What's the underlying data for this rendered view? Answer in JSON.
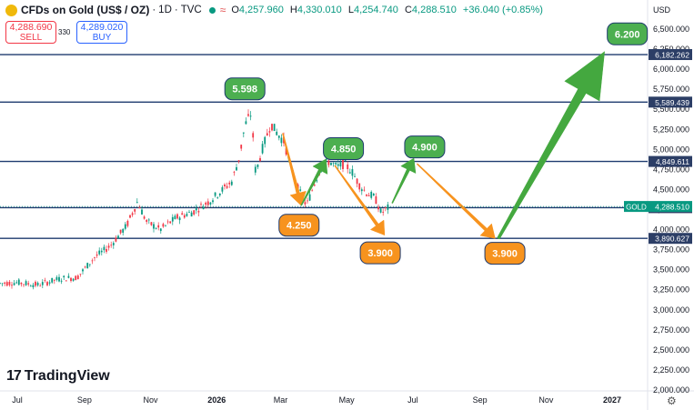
{
  "header": {
    "symbol": "CFDs on Gold (US$ / OZ)",
    "interval": "1D",
    "source": "TVC",
    "wave_icon": "≈",
    "ohlc": {
      "o_label": "O",
      "o": "4,257.960",
      "h_label": "H",
      "h": "4,330.010",
      "l_label": "L",
      "l": "4,254.740",
      "c_label": "C",
      "c": "4,288.510",
      "change": "+36.040 (+0.85%)"
    }
  },
  "trade": {
    "sell_price": "4,288.690",
    "sell_label": "SELL",
    "spread": "330",
    "buy_price": "4,289.020",
    "buy_label": "BUY"
  },
  "currency": "USD",
  "brand": "TradingView",
  "colors": {
    "up": "#089981",
    "down": "#f23645",
    "level_line": "#1e3a6e",
    "arrow_green": "#44a83f",
    "arrow_orange": "#f7931e",
    "label_green": "#4caf50",
    "label_orange": "#f7931e"
  },
  "chart_data": {
    "type": "line",
    "x_ticks": [
      "Jul",
      "Sep",
      "Nov",
      "2026",
      "Mar",
      "May",
      "Jul",
      "Sep",
      "Nov",
      "2027"
    ],
    "y_ticks": [
      "6,500.000",
      "6,250.000",
      "6,000.000",
      "5,750.000",
      "5,500.000",
      "5,250.000",
      "5,000.000",
      "4,750.000",
      "4,500.000",
      "4,250.000",
      "4,000.000",
      "3,750.000",
      "3,500.000",
      "3,250.000",
      "3,000.000",
      "2,750.000",
      "2,500.000",
      "2,250.000",
      "2,000.000"
    ],
    "y_tick_values": [
      6500,
      6250,
      6000,
      5750,
      5500,
      5250,
      5000,
      4750,
      4500,
      4250,
      4000,
      3750,
      3500,
      3250,
      3000,
      2750,
      2500,
      2250,
      2000
    ],
    "ylim": [
      2000,
      6500
    ],
    "price_series": {
      "dates": [
        "2025-06-15",
        "2025-07-01",
        "2025-07-20",
        "2025-08-10",
        "2025-08-25",
        "2025-09-10",
        "2025-09-25",
        "2025-10-10",
        "2025-10-20",
        "2025-10-28",
        "2025-11-10",
        "2025-11-25",
        "2025-12-10",
        "2025-12-25",
        "2026-01-05",
        "2026-01-15",
        "2026-01-22",
        "2026-01-27",
        "2026-02-02",
        "2026-02-06",
        "2026-02-12",
        "2026-02-20",
        "2026-02-26",
        "2026-03-04",
        "2026-03-12",
        "2026-03-18",
        "2026-03-25",
        "2026-04-02",
        "2026-04-08",
        "2026-04-15",
        "2026-04-22",
        "2026-04-29",
        "2026-05-06",
        "2026-05-13",
        "2026-05-20",
        "2026-05-27",
        "2026-06-02",
        "2026-06-06",
        "2026-06-10"
      ],
      "values": [
        3330,
        3340,
        3310,
        3390,
        3400,
        3650,
        3800,
        4050,
        4350,
        4100,
        4000,
        4150,
        4220,
        4350,
        4480,
        4600,
        4900,
        5300,
        5450,
        4700,
        5000,
        5320,
        5200,
        5100,
        4700,
        4480,
        4300,
        4600,
        4800,
        4850,
        4780,
        4820,
        4720,
        4550,
        4450,
        4400,
        4200,
        4250,
        4288.51
      ]
    },
    "levels": [
      6182.262,
      5589.439,
      4849.611,
      4273.634,
      3890.627
    ],
    "level_labels": [
      "6,182.262",
      "5,589.439",
      "4,849.611",
      "4,273.634",
      "3,890.627"
    ],
    "current_price": {
      "symbol": "GOLD",
      "value": "4,288.510",
      "y": 4288.51
    },
    "projection_arrows": [
      {
        "color": "orange",
        "from": [
          "2026-03-03",
          5200
        ],
        "to": [
          "2026-03-20",
          4300
        ]
      },
      {
        "color": "green",
        "from": [
          "2026-03-20",
          4300
        ],
        "to": [
          "2026-04-12",
          4880
        ]
      },
      {
        "color": "orange",
        "from": [
          "2026-04-20",
          4800
        ],
        "to": [
          "2026-06-05",
          3930
        ]
      },
      {
        "color": "green",
        "from": [
          "2026-06-12",
          4330
        ],
        "to": [
          "2026-07-02",
          4890
        ]
      },
      {
        "color": "orange",
        "from": [
          "2026-07-05",
          4820
        ],
        "to": [
          "2026-09-15",
          3890
        ]
      },
      {
        "color": "green",
        "from": [
          "2026-09-18",
          3890
        ],
        "to": [
          "2026-12-25",
          6220
        ]
      }
    ],
    "annotations": [
      {
        "text": "5.598",
        "color": "green",
        "x": "2026-01-27",
        "y": 5755
      },
      {
        "text": "4.850",
        "color": "green",
        "x": "2026-04-28",
        "y": 5010
      },
      {
        "text": "4.250",
        "color": "orange",
        "x": "2026-03-18",
        "y": 4055
      },
      {
        "text": "3.900",
        "color": "orange",
        "x": "2026-06-01",
        "y": 3710
      },
      {
        "text": "4.900",
        "color": "green",
        "x": "2026-07-12",
        "y": 5030
      },
      {
        "text": "3.900",
        "color": "orange",
        "x": "2026-09-24",
        "y": 3705
      },
      {
        "text": "6.200",
        "color": "green",
        "x": "2027-01-15",
        "y": 6440
      }
    ]
  }
}
